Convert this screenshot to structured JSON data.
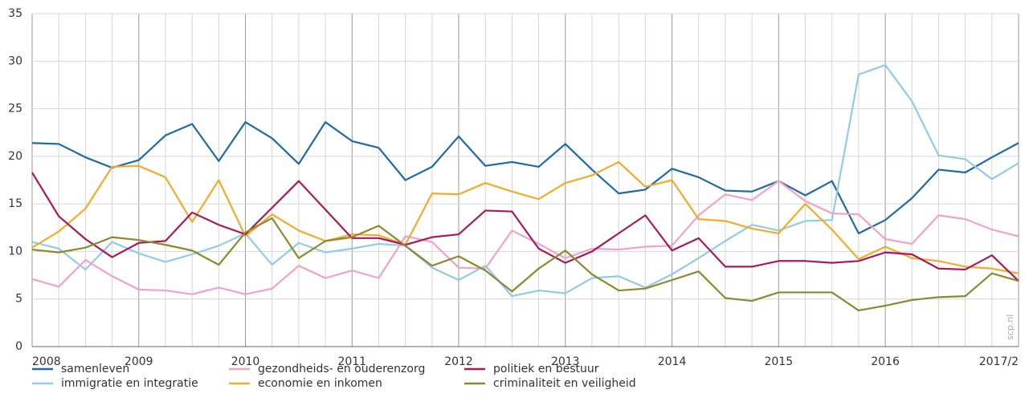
{
  "chart_data": {
    "type": "line",
    "categories": [
      "2008",
      null,
      null,
      null,
      "2009",
      null,
      null,
      null,
      "2010",
      null,
      null,
      null,
      "2011",
      null,
      null,
      null,
      "2012",
      null,
      null,
      null,
      "2013",
      null,
      null,
      null,
      "2014",
      null,
      null,
      null,
      "2015",
      null,
      null,
      null,
      "2016",
      null,
      null,
      null,
      null,
      "2017/2"
    ],
    "series": [
      {
        "name": "samenleven",
        "color": "#1f6aa5",
        "values": [
          21.4,
          21.3,
          19.9,
          18.8,
          19.6,
          22.2,
          23.4,
          19.5,
          23.6,
          21.9,
          19.2,
          23.6,
          21.6,
          20.9,
          17.5,
          18.9,
          22.1,
          19.0,
          19.4,
          18.9,
          21.3,
          18.6,
          16.1,
          16.5,
          18.7,
          17.8,
          16.4,
          16.3,
          17.4,
          15.9,
          17.4,
          11.9,
          13.3,
          15.6,
          18.6,
          18.3,
          19.9,
          21.4
        ]
      },
      {
        "name": "immigratie en integratie",
        "color": "#92cbe8",
        "values": [
          11.0,
          10.3,
          8.1,
          11.0,
          9.8,
          8.9,
          9.7,
          10.6,
          11.9,
          8.6,
          10.9,
          9.9,
          10.3,
          10.8,
          10.6,
          8.3,
          7.0,
          8.5,
          5.3,
          5.9,
          5.6,
          7.2,
          7.4,
          6.2,
          7.6,
          9.3,
          11.1,
          12.8,
          12.2,
          13.2,
          13.3,
          28.6,
          29.6,
          25.8,
          20.1,
          19.7,
          17.6,
          19.3
        ]
      },
      {
        "name": "gezondheids- en ouderenzorg",
        "color": "#f0a3c4",
        "values": [
          7.1,
          6.3,
          9.1,
          7.4,
          6.0,
          5.9,
          5.5,
          6.2,
          5.5,
          6.1,
          8.5,
          7.2,
          8.0,
          7.2,
          11.6,
          11.0,
          8.3,
          8.2,
          12.2,
          10.8,
          9.3,
          10.3,
          10.2,
          10.5,
          10.6,
          13.8,
          16.0,
          15.4,
          17.4,
          15.3,
          14.0,
          13.9,
          11.3,
          10.8,
          13.8,
          13.4,
          12.3,
          11.6
        ]
      },
      {
        "name": "economie en inkomen",
        "color": "#f2ab2b",
        "values": [
          10.4,
          12.1,
          14.5,
          18.9,
          19.0,
          17.8,
          13.1,
          17.5,
          11.6,
          13.9,
          12.2,
          11.1,
          11.8,
          11.7,
          10.7,
          16.1,
          16.0,
          17.2,
          16.3,
          15.5,
          17.2,
          18.0,
          19.4,
          16.8,
          17.5,
          13.4,
          13.2,
          12.4,
          11.9,
          15.0,
          12.3,
          9.2,
          10.5,
          9.3,
          9.0,
          8.4,
          8.2,
          7.7
        ]
      },
      {
        "name": "politiek en bestuur",
        "color": "#a8195c",
        "values": [
          18.3,
          13.7,
          11.3,
          9.4,
          10.9,
          11.1,
          14.1,
          12.8,
          11.8,
          14.6,
          17.4,
          14.4,
          11.4,
          11.4,
          10.7,
          11.5,
          11.8,
          14.3,
          14.2,
          10.3,
          8.8,
          10.0,
          11.9,
          13.8,
          10.1,
          11.4,
          8.4,
          8.4,
          9.0,
          9.0,
          8.8,
          9.0,
          9.9,
          9.7,
          8.2,
          8.1,
          9.6,
          6.9
        ]
      },
      {
        "name": "criminaliteit en veiligheid",
        "color": "#8a8a2e",
        "values": [
          10.2,
          9.9,
          10.4,
          11.5,
          11.2,
          10.7,
          10.1,
          8.6,
          12.0,
          13.5,
          9.3,
          11.1,
          11.5,
          12.7,
          10.6,
          8.5,
          9.5,
          8.0,
          5.8,
          8.2,
          10.1,
          7.6,
          5.9,
          6.1,
          7.0,
          7.9,
          5.1,
          4.8,
          5.7,
          5.7,
          5.7,
          3.8,
          4.3,
          4.9,
          5.2,
          5.3,
          7.7,
          6.9
        ]
      }
    ],
    "ylim": [
      0,
      35
    ],
    "yticks": [
      0,
      5,
      10,
      15,
      20,
      25,
      30,
      35
    ],
    "grid": true,
    "annotation": "scp.nl"
  }
}
